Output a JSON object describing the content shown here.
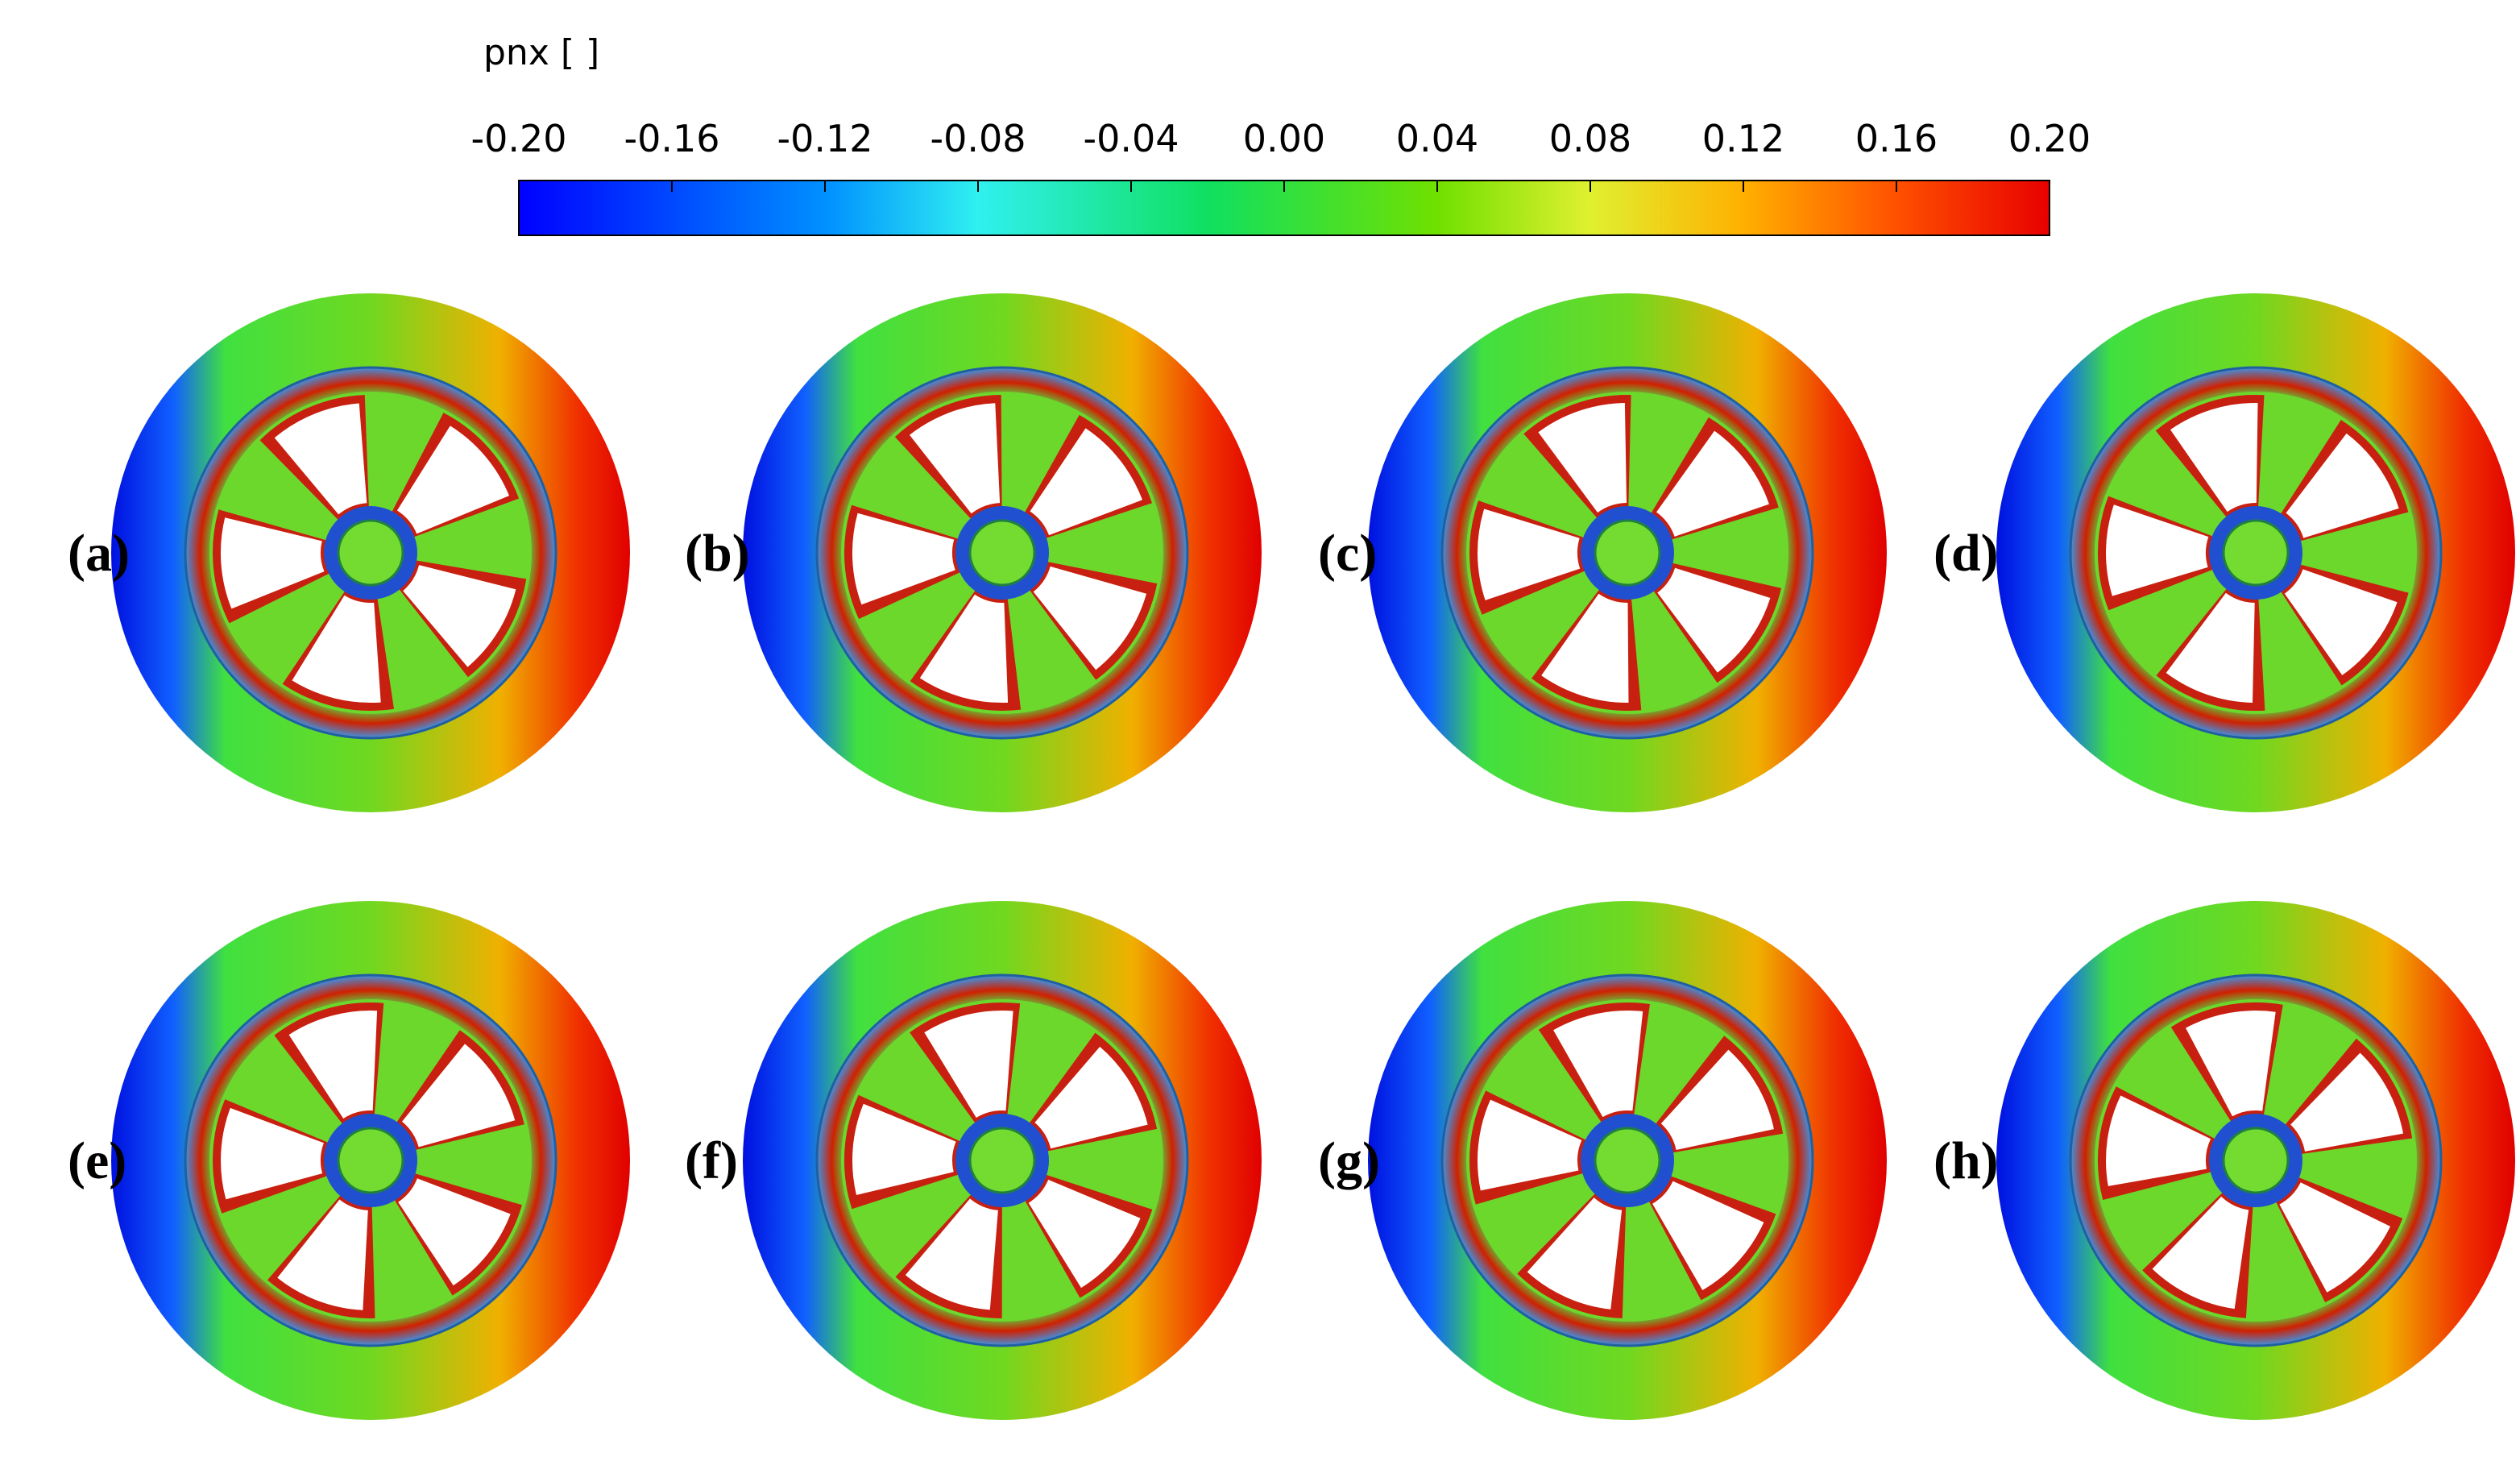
{
  "colorbar": {
    "title": "pnx [ ]",
    "lim": [
      -0.2,
      0.2
    ],
    "ticks": [
      {
        "value": -0.2,
        "label": "-0.20"
      },
      {
        "value": -0.16,
        "label": "-0.16"
      },
      {
        "value": -0.12,
        "label": "-0.12"
      },
      {
        "value": -0.08,
        "label": "-0.08"
      },
      {
        "value": -0.04,
        "label": "-0.04"
      },
      {
        "value": 0,
        "label": "0.00"
      },
      {
        "value": 0.04,
        "label": "0.04"
      },
      {
        "value": 0.08,
        "label": "0.08"
      },
      {
        "value": 0.12,
        "label": "0.12"
      },
      {
        "value": 0.16,
        "label": "0.16"
      },
      {
        "value": 0.2,
        "label": "0.20"
      }
    ]
  },
  "panels": [
    {
      "label": "(a)"
    },
    {
      "label": "(b)"
    },
    {
      "label": "(c)"
    },
    {
      "label": "(d)"
    },
    {
      "label": "(e)"
    },
    {
      "label": "(f)"
    },
    {
      "label": "(g)"
    },
    {
      "label": "(h)"
    }
  ]
}
